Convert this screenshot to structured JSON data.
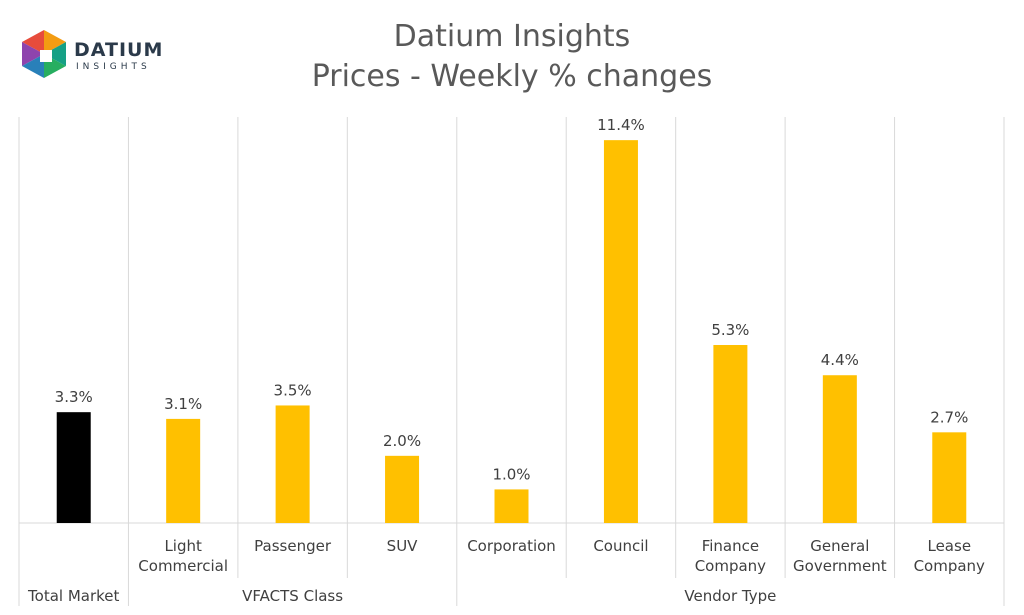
{
  "logo": {
    "word": "DATIUM",
    "sub": "INSIGHTS"
  },
  "chart_data": {
    "type": "bar",
    "title": "Datium Insights",
    "subtitle": "Prices - Weekly % changes",
    "xlabel": "",
    "ylabel": "",
    "ylim": [
      0,
      12
    ],
    "grid": false,
    "legend": "none",
    "value_format": "percent_one_decimal",
    "categories": [
      "Total Market",
      "Light Commercial",
      "Passenger",
      "SUV",
      "Corporation",
      "Council",
      "Finance Company",
      "General Government",
      "Lease Company"
    ],
    "category_lines": [
      [
        "Total Market"
      ],
      [
        "Light",
        "Commercial"
      ],
      [
        "Passenger"
      ],
      [
        "SUV"
      ],
      [
        "Corporation"
      ],
      [
        "Council"
      ],
      [
        "Finance",
        "Company"
      ],
      [
        "General",
        "Government"
      ],
      [
        "Lease",
        "Company"
      ]
    ],
    "groups": [
      {
        "label": "",
        "span": [
          0,
          0
        ]
      },
      {
        "label": "VFACTS Class",
        "span": [
          1,
          3
        ]
      },
      {
        "label": "Vendor Type",
        "span": [
          4,
          8
        ]
      }
    ],
    "values": [
      3.3,
      3.1,
      3.5,
      2.0,
      1.0,
      11.4,
      5.3,
      4.4,
      2.7
    ],
    "data_labels": [
      "3.3%",
      "3.1%",
      "3.5%",
      "2.0%",
      "1.0%",
      "11.4%",
      "5.3%",
      "4.4%",
      "2.7%"
    ],
    "colors": [
      "#000000",
      "#ffc000",
      "#ffc000",
      "#ffc000",
      "#ffc000",
      "#ffc000",
      "#ffc000",
      "#ffc000",
      "#ffc000"
    ]
  }
}
